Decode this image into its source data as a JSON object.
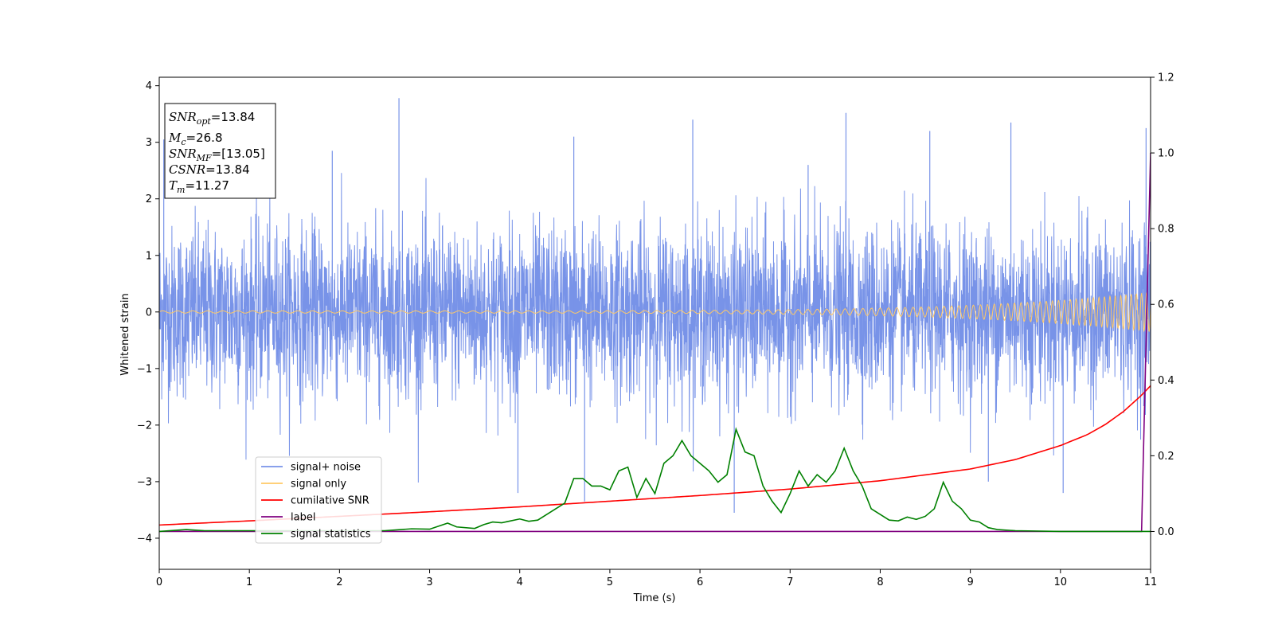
{
  "chart_data": {
    "type": "line",
    "title": "",
    "xlabel": "Time (s)",
    "ylabel": "Whitened strain",
    "y2label": "",
    "xlim": [
      0,
      11
    ],
    "ylim": [
      -4.55,
      4.15
    ],
    "y2lim": [
      -0.1,
      1.2
    ],
    "x_ticks": [
      "0",
      "1",
      "2",
      "3",
      "4",
      "5",
      "6",
      "7",
      "8",
      "9",
      "10",
      "11"
    ],
    "y_ticks": [
      "−4",
      "−3",
      "−2",
      "−1",
      "0",
      "1",
      "2",
      "3",
      "4"
    ],
    "y2_ticks": [
      "0.0",
      "0.2",
      "0.4",
      "0.6",
      "0.8",
      "1.0",
      "1.2"
    ],
    "grid": false,
    "legend_position": "lower-left",
    "annotation": {
      "lines": [
        {
          "base": "SNR",
          "sub": "opt",
          "value": "=13.84"
        },
        {
          "base": "M",
          "sub": "c",
          "value": "=26.8"
        },
        {
          "base": "SNR",
          "sub": "MF",
          "value": "=[13.05]"
        },
        {
          "base": "CSNR",
          "sub": "",
          "value": "=13.84"
        },
        {
          "base": "T",
          "sub": "m",
          "value": "=11.27"
        }
      ]
    },
    "series": [
      {
        "name": "signal+ noise",
        "axis": "left",
        "color": "#7893e8",
        "description_envelope": {
          "typical_low": -1.6,
          "typical_high": 1.6,
          "max": 3.78,
          "min": -3.55
        },
        "spikes": [
          {
            "x": 2.66,
            "y": 3.78
          },
          {
            "x": 7.62,
            "y": 3.52
          },
          {
            "x": 6.38,
            "y": -3.55
          },
          {
            "x": 4.6,
            "y": 3.1
          },
          {
            "x": 4.72,
            "y": -3.35
          },
          {
            "x": 5.92,
            "y": 3.4
          },
          {
            "x": 9.45,
            "y": 3.35
          },
          {
            "x": 0.05,
            "y": 3.05
          },
          {
            "x": 3.98,
            "y": -3.2
          },
          {
            "x": 10.03,
            "y": -3.2
          },
          {
            "x": 10.95,
            "y": 3.25
          },
          {
            "x": 1.92,
            "y": 2.85
          },
          {
            "x": 7.2,
            "y": 2.6
          },
          {
            "x": 8.55,
            "y": 3.2
          },
          {
            "x": 9.2,
            "y": -3.0
          }
        ]
      },
      {
        "name": "signal only",
        "axis": "left",
        "color": "#ffc966",
        "chirp": {
          "start_amplitude": 0.02,
          "end_amplitude": 0.35,
          "start_frequency_hz": 6,
          "end_frequency_hz": 18
        }
      },
      {
        "name": "cumilative SNR",
        "axis": "right",
        "color": "#ff0000",
        "x": [
          0,
          1,
          2,
          3,
          4,
          5,
          6,
          7,
          8,
          9,
          9.5,
          10,
          10.3,
          10.5,
          10.7,
          10.9,
          11
        ],
        "values": [
          0.017,
          0.028,
          0.04,
          0.052,
          0.065,
          0.08,
          0.095,
          0.112,
          0.134,
          0.165,
          0.19,
          0.227,
          0.256,
          0.283,
          0.317,
          0.36,
          0.385
        ]
      },
      {
        "name": "label",
        "axis": "right",
        "color": "#800080",
        "x": [
          0,
          10.9,
          11
        ],
        "values": [
          0.0,
          0.0,
          1.0
        ]
      },
      {
        "name": "signal statistics",
        "axis": "right",
        "color": "#008000",
        "x": [
          0,
          0.3,
          0.5,
          1,
          1.5,
          2,
          2.5,
          2.8,
          3.0,
          3.2,
          3.3,
          3.5,
          3.6,
          3.7,
          3.8,
          4.0,
          4.1,
          4.2,
          4.3,
          4.4,
          4.5,
          4.6,
          4.7,
          4.8,
          4.9,
          5.0,
          5.1,
          5.2,
          5.3,
          5.4,
          5.5,
          5.6,
          5.7,
          5.8,
          5.9,
          6.0,
          6.1,
          6.2,
          6.3,
          6.4,
          6.5,
          6.6,
          6.7,
          6.8,
          6.9,
          7.0,
          7.1,
          7.2,
          7.3,
          7.4,
          7.5,
          7.6,
          7.7,
          7.8,
          7.9,
          8.0,
          8.1,
          8.2,
          8.3,
          8.4,
          8.5,
          8.6,
          8.7,
          8.8,
          8.9,
          9.0,
          9.1,
          9.2,
          9.3,
          9.5,
          10,
          10.5,
          11
        ],
        "values": [
          0.0,
          0.005,
          0.002,
          0.002,
          0.002,
          0.002,
          0.002,
          0.007,
          0.006,
          0.022,
          0.012,
          0.008,
          0.018,
          0.025,
          0.023,
          0.033,
          0.027,
          0.03,
          0.045,
          0.06,
          0.075,
          0.14,
          0.14,
          0.12,
          0.12,
          0.11,
          0.16,
          0.17,
          0.09,
          0.14,
          0.1,
          0.18,
          0.2,
          0.24,
          0.2,
          0.18,
          0.16,
          0.13,
          0.15,
          0.27,
          0.21,
          0.2,
          0.12,
          0.08,
          0.05,
          0.1,
          0.16,
          0.12,
          0.15,
          0.13,
          0.16,
          0.22,
          0.16,
          0.12,
          0.06,
          0.045,
          0.03,
          0.028,
          0.038,
          0.032,
          0.04,
          0.06,
          0.13,
          0.08,
          0.06,
          0.03,
          0.025,
          0.01,
          0.005,
          0.002,
          0.0,
          0.0,
          0.0
        ]
      }
    ]
  }
}
